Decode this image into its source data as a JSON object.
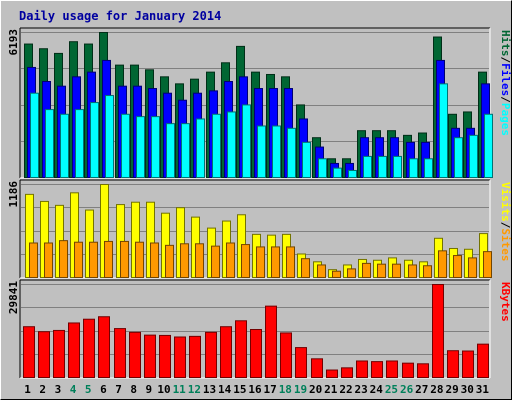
{
  "chart_data": {
    "type": "bar",
    "title": "Daily usage for January 2014",
    "categories": [
      "1",
      "2",
      "3",
      "4",
      "5",
      "6",
      "7",
      "8",
      "9",
      "10",
      "11",
      "12",
      "13",
      "14",
      "15",
      "16",
      "17",
      "18",
      "19",
      "20",
      "21",
      "22",
      "23",
      "24",
      "25",
      "26",
      "27",
      "28",
      "29",
      "30",
      "31"
    ],
    "weekend_days": [
      "4",
      "5",
      "11",
      "12",
      "18",
      "19",
      "25",
      "26"
    ],
    "panels": [
      {
        "max_label": "6193",
        "ylim": [
          0,
          6193
        ],
        "legend": [
          "Pages",
          "/",
          "Files",
          "/",
          "Hits"
        ],
        "series": [
          {
            "name": "Hits",
            "color": "#006633",
            "values": [
              5700,
              5500,
              5300,
              5800,
              5700,
              6193,
              4800,
              4800,
              4600,
              4300,
              4000,
              4200,
              4500,
              4900,
              5600,
              4500,
              4400,
              4300,
              3100,
              1700,
              800,
              800,
              2000,
              2000,
              2000,
              1800,
              1900,
              6000,
              2700,
              2800,
              4500
            ]
          },
          {
            "name": "Files",
            "color": "#0000ff",
            "values": [
              4700,
              4100,
              3900,
              4300,
              4500,
              5000,
              3900,
              3900,
              3800,
              3600,
              3300,
              3600,
              3700,
              4100,
              4300,
              3800,
              3800,
              3800,
              2500,
              1300,
              600,
              600,
              1700,
              1700,
              1700,
              1500,
              1500,
              5000,
              2100,
              2100,
              4000
            ]
          },
          {
            "name": "Pages",
            "color": "#00ffff",
            "values": [
              3600,
              2900,
              2700,
              2900,
              3200,
              3500,
              2700,
              2600,
              2600,
              2300,
              2300,
              2500,
              2700,
              2800,
              3100,
              2200,
              2200,
              2100,
              1500,
              800,
              400,
              300,
              900,
              900,
              900,
              800,
              800,
              4000,
              1700,
              1800,
              2700
            ]
          }
        ]
      },
      {
        "max_label": "1186",
        "ylim": [
          0,
          1186
        ],
        "legend": [
          "Sites",
          "/",
          "Visits"
        ],
        "series": [
          {
            "name": "Visits",
            "color": "#ffff00",
            "values": [
              1060,
              970,
              920,
              1080,
              860,
              1186,
              930,
              960,
              960,
              820,
              890,
              770,
              630,
              720,
              800,
              550,
              540,
              550,
              300,
              200,
              100,
              160,
              230,
              220,
              250,
              220,
              200,
              500,
              370,
              360,
              560
            ]
          },
          {
            "name": "Sites",
            "color": "#ff9900",
            "values": [
              440,
              440,
              470,
              450,
              450,
              460,
              460,
              450,
              440,
              410,
              430,
              430,
              400,
              440,
              420,
              390,
              390,
              390,
              240,
              160,
              80,
              110,
              180,
              170,
              170,
              160,
              150,
              340,
              280,
              250,
              330
            ]
          }
        ]
      },
      {
        "max_label": "29841",
        "ylim": [
          0,
          29841
        ],
        "legend": [
          "KBytes"
        ],
        "series": [
          {
            "name": "KBytes",
            "color": "#ff0000",
            "values": [
              16300,
              14700,
              15100,
              17500,
              18700,
              19500,
              15700,
              14500,
              13600,
              13500,
              13000,
              13200,
              14500,
              16300,
              18200,
              15400,
              22900,
              14300,
              9600,
              6000,
              2400,
              3100,
              5300,
              5100,
              5300,
              4600,
              4400,
              29841,
              8600,
              8500,
              10700
            ]
          }
        ]
      }
    ]
  }
}
